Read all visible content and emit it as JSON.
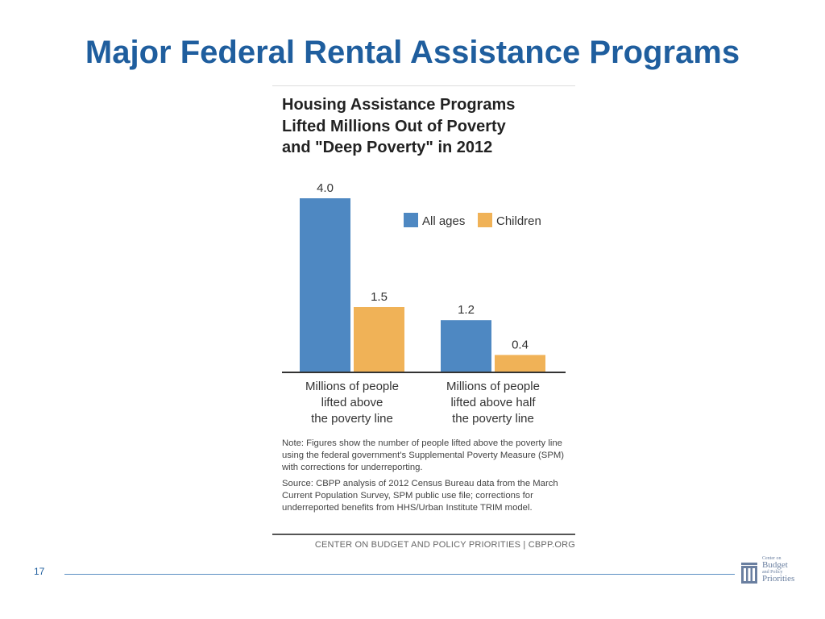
{
  "slide": {
    "title": "Major Federal Rental Assistance Programs",
    "page_number": "17"
  },
  "figure": {
    "title_lines": [
      "Housing Assistance Programs",
      "Lifted Millions Out of Poverty",
      "and \"Deep Poverty\" in 2012"
    ],
    "note": "Note: Figures show the number of people lifted above the poverty line using the federal government's Supplemental Poverty Measure (SPM) with corrections for underreporting.",
    "source": "Source: CBPP analysis of 2012 Census Bureau data from the March Current Population Survey, SPM public use file; corrections for underreported benefits from HHS/Urban Institute TRIM model.",
    "credit": "CENTER ON BUDGET AND POLICY PRIORITIES | CBPP.ORG"
  },
  "chart_data": {
    "type": "bar",
    "title": "Housing Assistance Programs Lifted Millions Out of Poverty and \"Deep Poverty\" in 2012",
    "categories": [
      [
        "Millions of people",
        "lifted above",
        "the poverty line"
      ],
      [
        "Millions of people",
        "lifted above half",
        "the poverty line"
      ]
    ],
    "series": [
      {
        "name": "All ages",
        "values": [
          4.0,
          1.2
        ],
        "labels": [
          "4.0",
          "1.2"
        ],
        "color": "#4e88c2"
      },
      {
        "name": "Children",
        "values": [
          1.5,
          0.4
        ],
        "labels": [
          "1.5",
          "0.4"
        ],
        "color": "#f0b257"
      }
    ],
    "ylim": [
      0,
      4.0
    ],
    "grid": false,
    "legend_position": "top-right",
    "axis_color": "#333333"
  },
  "logo": {
    "line1": "Center on",
    "line2": "Budget",
    "line3": "and Policy",
    "line4": "Priorities",
    "color": "#6a7fa0"
  }
}
